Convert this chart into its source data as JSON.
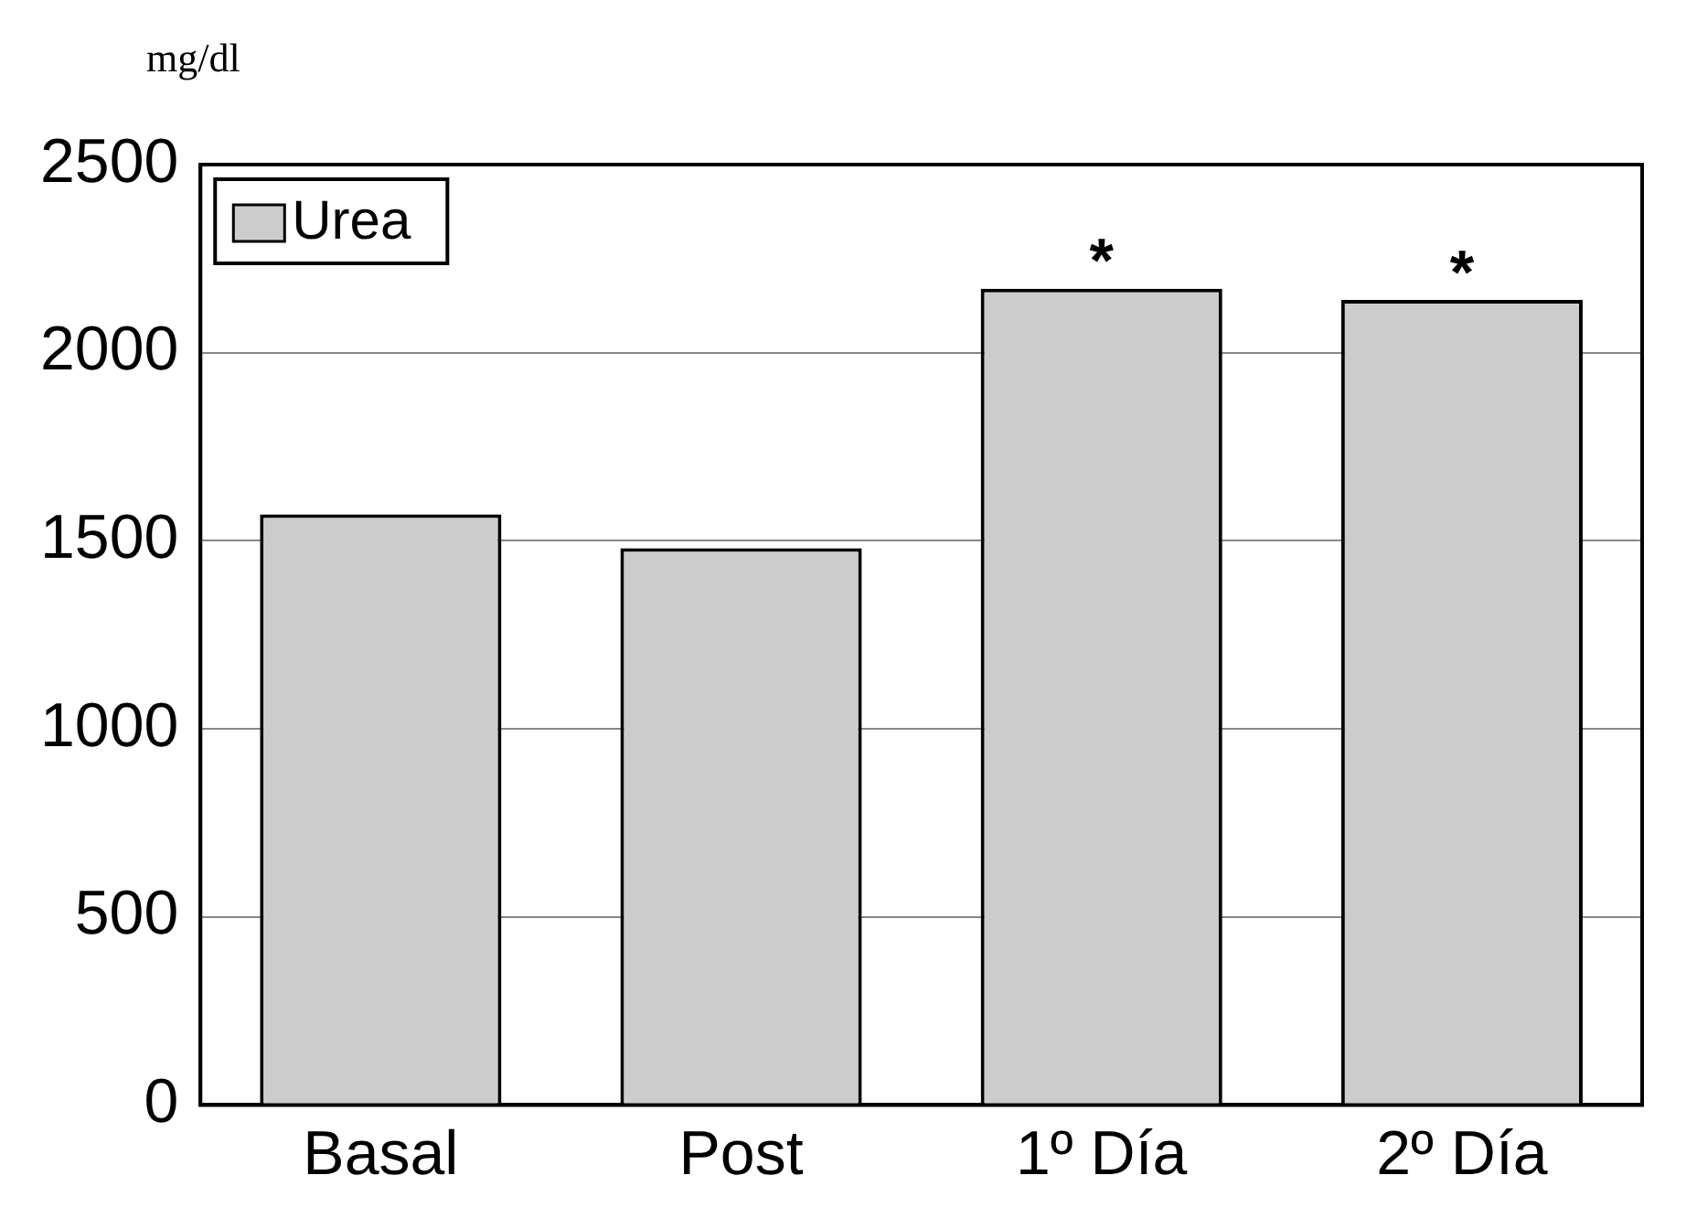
{
  "chart_data": {
    "type": "bar",
    "ylabel": "mg/dl",
    "categories": [
      "Basal",
      "Post",
      "1º Día",
      "2º Día"
    ],
    "series": [
      {
        "name": "Urea",
        "color": "#cccccc",
        "values": [
          1570,
          1480,
          2170,
          2140
        ]
      }
    ],
    "ylim": [
      0,
      2500
    ],
    "yticks": [
      0,
      500,
      1000,
      1500,
      2000,
      2500
    ],
    "grid": "y",
    "legend": "top left",
    "annotations": [
      {
        "text": "*",
        "x": "1º Día",
        "y": 2170
      },
      {
        "text": "*",
        "x": "2º Día",
        "y": 2140
      }
    ]
  }
}
